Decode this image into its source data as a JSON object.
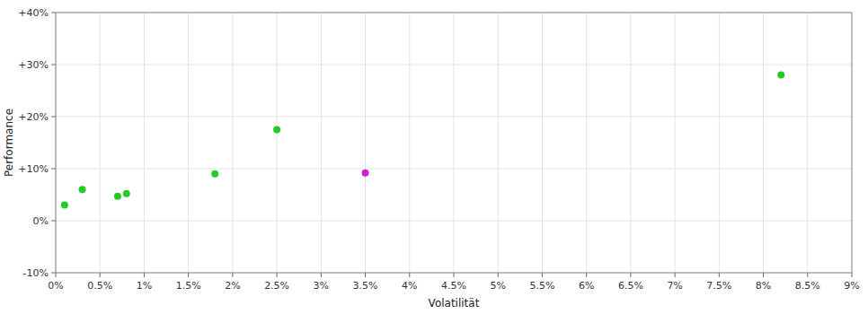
{
  "chart_data": {
    "type": "scatter",
    "xlabel": "Volatilität",
    "ylabel": "Performance",
    "xlim": [
      0.0,
      0.09
    ],
    "ylim": [
      -0.1,
      0.4
    ],
    "xticks": [
      {
        "value": 0.0,
        "label": "0%"
      },
      {
        "value": 0.005,
        "label": "0.5%"
      },
      {
        "value": 0.01,
        "label": "1%"
      },
      {
        "value": 0.015,
        "label": "1.5%"
      },
      {
        "value": 0.02,
        "label": "2%"
      },
      {
        "value": 0.025,
        "label": "2.5%"
      },
      {
        "value": 0.03,
        "label": "3%"
      },
      {
        "value": 0.035,
        "label": "3.5%"
      },
      {
        "value": 0.04,
        "label": "4%"
      },
      {
        "value": 0.045,
        "label": "4.5%"
      },
      {
        "value": 0.05,
        "label": "5%"
      },
      {
        "value": 0.055,
        "label": "5.5%"
      },
      {
        "value": 0.06,
        "label": "6%"
      },
      {
        "value": 0.065,
        "label": "6.5%"
      },
      {
        "value": 0.07,
        "label": "7%"
      },
      {
        "value": 0.075,
        "label": "7.5%"
      },
      {
        "value": 0.08,
        "label": "8%"
      },
      {
        "value": 0.085,
        "label": "8.5%"
      },
      {
        "value": 0.09,
        "label": "9%"
      }
    ],
    "yticks": [
      {
        "value": -0.1,
        "label": "-10%"
      },
      {
        "value": 0.0,
        "label": "0%"
      },
      {
        "value": 0.1,
        "label": "+10%"
      },
      {
        "value": 0.2,
        "label": "+20%"
      },
      {
        "value": 0.3,
        "label": "+30%"
      },
      {
        "value": 0.4,
        "label": "+40%"
      }
    ],
    "grid": true,
    "series": [
      {
        "color": "#22cc22",
        "x": [
          0.001,
          0.003,
          0.007,
          0.008,
          0.018,
          0.025,
          0.082
        ],
        "values": [
          0.03,
          0.06,
          0.047,
          0.052,
          0.09,
          0.175,
          0.28
        ]
      },
      {
        "color": "#cc22cc",
        "x": [
          0.035
        ],
        "values": [
          0.092
        ]
      }
    ]
  }
}
